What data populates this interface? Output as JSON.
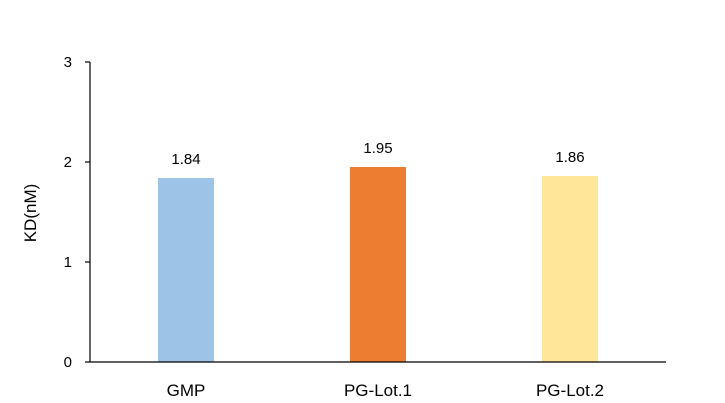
{
  "chart_data": {
    "type": "bar",
    "title": "",
    "xlabel": "",
    "ylabel": "KD(nM)",
    "categories": [
      "GMP",
      "PG-Lot.1",
      "PG-Lot.2"
    ],
    "values": [
      1.84,
      1.95,
      1.86
    ],
    "value_labels": [
      "1.84",
      "1.95",
      "1.86"
    ],
    "colors": [
      "#9dc3e6",
      "#ed7d31",
      "#ffe699"
    ],
    "ylim": [
      0,
      3
    ],
    "yticks": [
      0,
      1,
      2,
      3
    ],
    "grid": false,
    "legend": "none"
  }
}
